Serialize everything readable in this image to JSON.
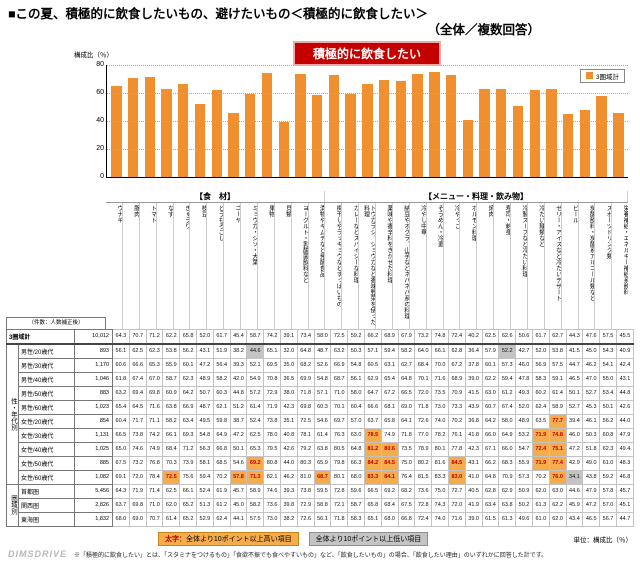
{
  "page": {
    "title_line1": "■この夏、積極的に飲食したいもの、避けたいもの＜積極的に飲食したい＞",
    "title_line2": "（全体／複数回答）"
  },
  "chart_data": {
    "type": "bar",
    "title": "積極的に飲食したい",
    "ylabel": "構成比（％）",
    "xlabel": "",
    "ylim": [
      0,
      80
    ],
    "y_ticks": [
      80,
      60,
      40,
      20,
      0
    ],
    "grid": "dotted-horizontal",
    "legend": [
      "3圏域計"
    ],
    "legend_position": "top-right",
    "bar_color": "#EF8F2F",
    "groups": [
      {
        "label": "【食　材】",
        "span": 13
      },
      {
        "label": "【メニュー・料理・飲み物】",
        "span": 18
      }
    ],
    "categories": [
      "ウナギ",
      "豚肉",
      "トマト",
      "なす",
      "きゅうり",
      "枝豆",
      "とうもろこし",
      "ゴーヤ",
      "ミョウガ・シソ・大葉",
      "果物",
      "貝類",
      "ヨーグルト・乳酸菌飲料など",
      "漬物やキムチなど発酵食品",
      "梅干しやラッキョウなどすっぱいもの",
      "カレーなどスパイシーな料理",
      "トウガラシ、ショウガなど香味野菜を使った料理",
      "薬味や香辛料をきかせた料理",
      "納豆やオクラ、山芋などネバネバ系の料理",
      "冷やし中華",
      "そうめん・冷麦",
      "冷やっこ",
      "ホルモン料理",
      "焼肉",
      "寿司・刺身",
      "冷製スープなど冷たい料理",
      "冷たい麺類など",
      "ゼリー・アイスなど冷たいデザート",
      "ビール",
      "炭酸飲料・炭酸系アルコール類など",
      "スポーツドリンク類",
      "栄養補給・エネルギー補給系飲料"
    ],
    "values": [
      64.3,
      70.7,
      71.2,
      62.2,
      65.8,
      52.0,
      61.7,
      45.4,
      58.7,
      74.2,
      39.1,
      73.4,
      58.0,
      72.5,
      59.2,
      66.2,
      68.9,
      67.9,
      73.2,
      74.8,
      72.4,
      40.2,
      62.5,
      62.6,
      50.6,
      61.7,
      62.7,
      44.3,
      47.6,
      57.5,
      45.5
    ]
  },
  "table": {
    "corner_label": "（件数：人数補正後）",
    "total_row": {
      "label": "3圏域計",
      "n": "10,012",
      "values": [
        64.3,
        70.7,
        71.2,
        62.2,
        65.8,
        52.0,
        61.7,
        45.4,
        58.7,
        74.2,
        39.1,
        73.4,
        58.0,
        72.5,
        59.2,
        66.2,
        68.9,
        67.9,
        73.2,
        74.8,
        72.4,
        40.2,
        62.5,
        62.6,
        50.6,
        61.7,
        62.7,
        44.3,
        47.6,
        57.5,
        45.5
      ]
    },
    "groups": [
      {
        "label": "性・年代別",
        "rows": [
          {
            "label": "男性/20歳代",
            "n": "893",
            "values": [
              56.1,
              62.5,
              62.3,
              53.8,
              56.2,
              43.1,
              51.9,
              38.2,
              44.6,
              65.1,
              32.0,
              64.8,
              48.7,
              63.2,
              50.3,
              57.1,
              59.4,
              58.2,
              64.0,
              66.1,
              62.8,
              36.4,
              57.9,
              52.2,
              42.7,
              52.0,
              53.8,
              41.5,
              45.0,
              54.3,
              40.9
            ]
          },
          {
            "label": "男性/30歳代",
            "n": "1,170",
            "values": [
              60.6,
              66.6,
              65.3,
              55.9,
              60.1,
              47.2,
              56.4,
              39.3,
              52.1,
              69.5,
              35.0,
              68.2,
              52.6,
              66.9,
              54.8,
              60.5,
              63.1,
              62.7,
              68.4,
              70.0,
              67.2,
              37.8,
              60.1,
              57.3,
              46.0,
              56.9,
              57.5,
              44.7,
              46.2,
              54.1,
              42.4
            ]
          },
          {
            "label": "男性/40歳代",
            "n": "1,046",
            "values": [
              61.8,
              67.4,
              67.0,
              58.7,
              62.3,
              48.9,
              58.2,
              42.0,
              54.9,
              70.8,
              36.5,
              69.9,
              54.8,
              68.7,
              56.1,
              62.9,
              65.4,
              64.8,
              70.1,
              71.6,
              68.9,
              39.0,
              62.2,
              59.4,
              47.8,
              58.3,
              59.1,
              46.5,
              47.0,
              55.0,
              43.1
            ]
          },
          {
            "label": "男性/50歳代",
            "n": "883",
            "values": [
              63.2,
              69.4,
              69.8,
              60.9,
              64.2,
              50.7,
              60.3,
              44.8,
              57.2,
              72.9,
              38.0,
              71.8,
              57.1,
              71.0,
              58.0,
              64.7,
              67.2,
              66.5,
              72.0,
              73.5,
              70.9,
              41.5,
              63.0,
              61.2,
              49.3,
              60.2,
              61.4,
              50.1,
              52.7,
              53.4,
              44.8
            ]
          },
          {
            "label": "男性/60歳代",
            "n": "1,023",
            "values": [
              65.4,
              64.5,
              71.6,
              63.8,
              66.9,
              48.7,
              62.1,
              51.2,
              61.4,
              71.9,
              42.3,
              69.8,
              60.3,
              70.1,
              60.4,
              66.6,
              68.1,
              69.0,
              71.8,
              73.0,
              73.3,
              43.9,
              60.7,
              67.4,
              52.0,
              62.4,
              58.9,
              52.7,
              45.3,
              50.1,
              42.6
            ]
          },
          {
            "label": "女性/20歳代",
            "n": "854",
            "values": [
              60.4,
              71.7,
              71.1,
              58.2,
              63.4,
              49.5,
              59.8,
              38.7,
              52.4,
              73.8,
              35.1,
              72.5,
              54.6,
              69.7,
              57.0,
              63.7,
              65.8,
              64.1,
              72.6,
              74.0,
              70.2,
              36.8,
              64.2,
              58.0,
              48.9,
              63.5,
              77.7,
              39.4,
              46.1,
              56.2,
              44.0
            ]
          },
          {
            "label": "女性/30歳代",
            "n": "1,131",
            "values": [
              66.5,
              73.8,
              74.2,
              66.1,
              69.3,
              54.8,
              64.9,
              47.2,
              62.5,
              78.0,
              40.8,
              78.1,
              61.4,
              76.3,
              63.0,
              78.5,
              74.9,
              71.8,
              77.0,
              78.2,
              76.1,
              41.8,
              66.0,
              64.9,
              53.2,
              71.9,
              74.8,
              46.0,
              50.3,
              60.8,
              47.9
            ]
          },
          {
            "label": "女性/40歳代",
            "n": "1,025",
            "values": [
              65.0,
              74.6,
              74.9,
              68.4,
              71.2,
              56.3,
              66.8,
              50.1,
              65.3,
              79.5,
              42.6,
              79.2,
              63.8,
              80.5,
              64.8,
              81.2,
              80.6,
              73.5,
              78.9,
              80.1,
              77.8,
              42.3,
              67.1,
              66.0,
              54.7,
              72.4,
              75.1,
              47.2,
              51.8,
              62.3,
              49.4
            ]
          },
          {
            "label": "女性/50歳代",
            "n": "885",
            "values": [
              67.5,
              73.2,
              76.8,
              70.3,
              73.9,
              58.1,
              68.5,
              54.6,
              69.2,
              80.8,
              44.0,
              80.3,
              65.9,
              79.8,
              66.3,
              84.2,
              84.5,
              75.0,
              80.2,
              81.6,
              84.5,
              43.1,
              66.2,
              68.3,
              55.9,
              71.9,
              77.4,
              42.9,
              49.0,
              61.0,
              48.3
            ]
          },
          {
            "label": "女性/60歳代",
            "n": "1,082",
            "values": [
              69.1,
              72.0,
              78.4,
              72.5,
              75.6,
              59.4,
              70.2,
              57.8,
              71.3,
              82.1,
              46.2,
              81.0,
              68.7,
              80.1,
              68.0,
              83.3,
              84.1,
              76.4,
              81.5,
              83.3,
              83.0,
              41.0,
              64.8,
              70.9,
              57.3,
              70.2,
              76.0,
              34.1,
              43.8,
              59.2,
              46.8
            ]
          }
        ]
      },
      {
        "label": "圏域別",
        "rows": [
          {
            "label": "首都圏",
            "n": "5,456",
            "values": [
              64.3,
              71.9,
              71.4,
              62.5,
              66.1,
              52.4,
              61.9,
              45.7,
              58.9,
              74.6,
              39.3,
              73.8,
              59.5,
              72.8,
              59.6,
              66.5,
              69.2,
              68.2,
              73.6,
              75.0,
              72.7,
              40.5,
              62.8,
              62.9,
              50.9,
              62.0,
              63.0,
              44.6,
              47.9,
              57.8,
              45.7
            ]
          },
          {
            "label": "関西圏",
            "n": "2,826",
            "values": [
              63.7,
              69.8,
              71.0,
              62.0,
              65.2,
              51.3,
              61.2,
              45.0,
              58.2,
              73.6,
              39.8,
              72.9,
              58.8,
              72.1,
              58.7,
              65.8,
              68.4,
              67.5,
              72.8,
              74.3,
              72.0,
              41.9,
              63.4,
              63.8,
              50.2,
              61.3,
              62.2,
              45.9,
              47.2,
              57.0,
              45.1
            ]
          },
          {
            "label": "東海圏",
            "n": "1,832",
            "values": [
              68.0,
              69.0,
              70.7,
              61.4,
              65.2,
              52.9,
              62.4,
              44.1,
              57.5,
              73.0,
              38.2,
              72.6,
              56.1,
              71.8,
              58.3,
              65.1,
              68.0,
              66.8,
              72.4,
              74.0,
              71.6,
              39.0,
              61.5,
              61.3,
              49.6,
              61.0,
              62.0,
              43.4,
              46.5,
              56.7,
              44.7
            ]
          }
        ]
      }
    ]
  },
  "footer": {
    "legend_high_bold": "太字",
    "legend_high_rest": "：全体より10ポイント以上高い項目",
    "legend_low": "全体より10ポイント以上低い項目",
    "unit": "単位：構成比（％）",
    "note": "※「積極的に飲食したい」とは、「スタミナをつけるもの」「食欲不振でも食べやすいもの」など、「飲食したいもの」の場合、「飲食したい理由」のいずれかに回答した計です。",
    "watermark": "DIMSDRIVE"
  },
  "colors": {
    "bar": "#EF8F2F",
    "highlight_high_bg": "#F6AC4D",
    "highlight_high_text": "#c00000",
    "highlight_low_bg": "#C4C4C4",
    "banner_bg": "#c40000"
  }
}
